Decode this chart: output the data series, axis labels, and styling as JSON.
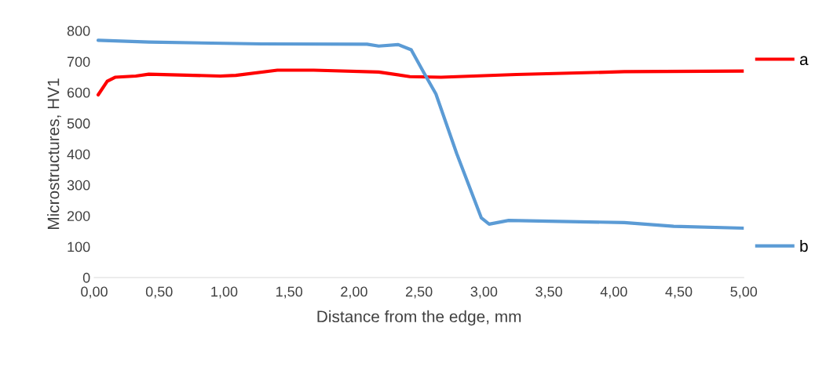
{
  "chart_data": {
    "type": "line",
    "xlabel": "Distance from the edge, mm",
    "ylabel": "Microstructures, HV1",
    "xlim": [
      0,
      5
    ],
    "xticks": [
      {
        "value": 0,
        "label": "0,00"
      },
      {
        "value": 0.5,
        "label": "0,50"
      },
      {
        "value": 1,
        "label": "1,00"
      },
      {
        "value": 1.5,
        "label": "1,50"
      },
      {
        "value": 2,
        "label": "2,00"
      },
      {
        "value": 2.5,
        "label": "2,50"
      },
      {
        "value": 3,
        "label": "3,00"
      },
      {
        "value": 3.5,
        "label": "3,50"
      },
      {
        "value": 4,
        "label": "4,00"
      },
      {
        "value": 4.5,
        "label": "4,50"
      },
      {
        "value": 5,
        "label": "5,00"
      }
    ],
    "ylim": [
      0,
      800
    ],
    "yticks": [
      0,
      100,
      200,
      300,
      400,
      500,
      600,
      700,
      800
    ],
    "grid": false,
    "legend": "right",
    "marker": "none",
    "line_style": "solid",
    "series": [
      {
        "name": "a",
        "color": "#ff0000",
        "x": [
          0.03,
          0.1,
          0.16,
          0.32,
          0.42,
          0.97,
          1.09,
          1.41,
          1.69,
          2.19,
          2.43,
          2.67,
          3.25,
          4.08,
          5.0
        ],
        "values": [
          592,
          636,
          649,
          653,
          659,
          653,
          655,
          672,
          672,
          666,
          651,
          649,
          658,
          667,
          669
        ]
      },
      {
        "name": "b",
        "color": "#5b9bd5",
        "x": [
          0.03,
          0.42,
          1.29,
          2.1,
          2.19,
          2.34,
          2.44,
          2.54,
          2.63,
          2.79,
          2.98,
          3.04,
          3.19,
          4.08,
          4.46,
          5.0
        ],
        "values": [
          769,
          763,
          757,
          756,
          750,
          755,
          738,
          662,
          595,
          402,
          193,
          173,
          185,
          178,
          166,
          160
        ]
      }
    ]
  }
}
